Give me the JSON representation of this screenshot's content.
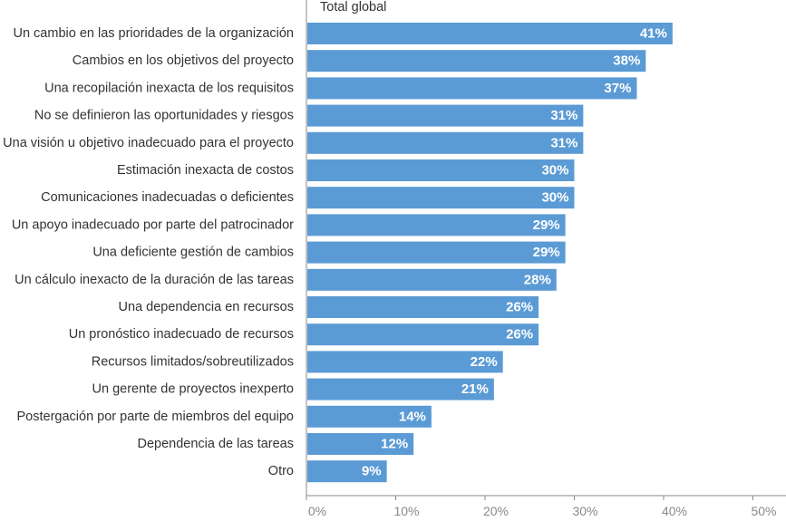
{
  "chart_data": {
    "type": "bar",
    "orientation": "horizontal",
    "title": "Total global",
    "categories": [
      "Un cambio en las prioridades de la organización",
      "Cambios en los objetivos del proyecto",
      "Una recopilación inexacta de los requisitos",
      "No se definieron las oportunidades y riesgos",
      "Una visión u objetivo inadecuado para el proyecto",
      "Estimación inexacta de costos",
      "Comunicaciones inadecuadas o deficientes",
      "Un apoyo inadecuado por parte del patrocinador",
      "Una deficiente gestión de cambios",
      "Un cálculo inexacto de la duración de las tareas",
      "Una dependencia en recursos",
      "Un pronóstico inadecuado de recursos",
      "Recursos limitados/sobreutilizados",
      "Un gerente de proyectos inexperto",
      "Postergación por parte de miembros del equipo",
      "Dependencia de las tareas",
      "Otro"
    ],
    "values": [
      41,
      38,
      37,
      31,
      31,
      30,
      30,
      29,
      29,
      28,
      26,
      26,
      22,
      21,
      14,
      12,
      9
    ],
    "value_labels": [
      "41%",
      "38%",
      "37%",
      "31%",
      "31%",
      "30%",
      "30%",
      "29%",
      "29%",
      "28%",
      "26%",
      "26%",
      "22%",
      "21%",
      "14%",
      "12%",
      "9%"
    ],
    "xlim": [
      0,
      50
    ],
    "x_ticks": [
      0,
      10,
      20,
      30,
      40,
      50
    ],
    "x_tick_labels": [
      "0%",
      "10%",
      "20%",
      "30%",
      "40%",
      "50%"
    ],
    "grid": false,
    "legend": "none",
    "bar_color": "#5b9bd5",
    "axis_color": "#888888"
  }
}
